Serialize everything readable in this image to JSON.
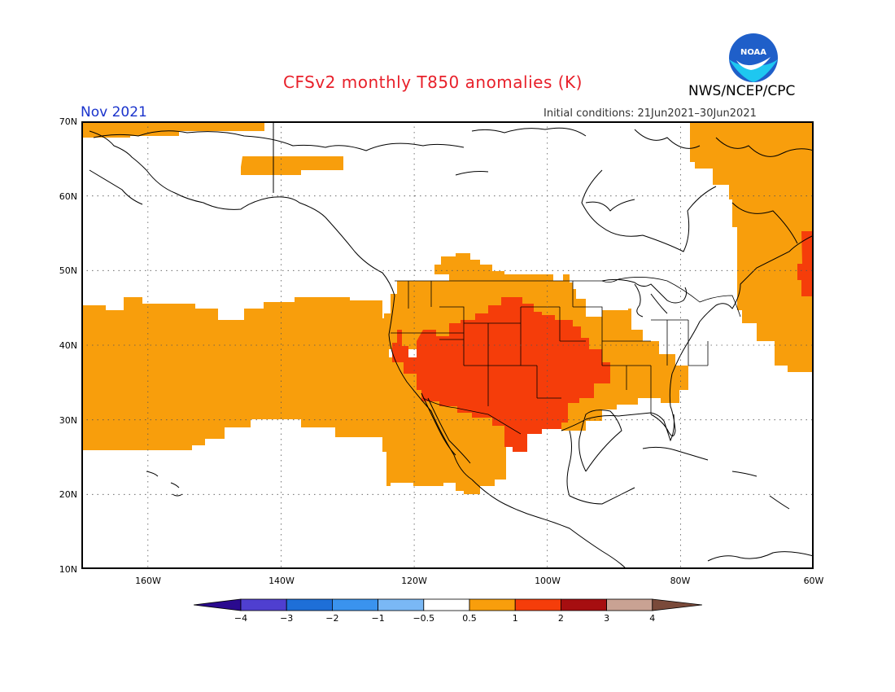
{
  "title": "CFSv2 monthly T850 anomalies (K)",
  "agency": "NWS/NCEP/CPC",
  "logo_text": "NOAA",
  "valid_month": "Nov 2021",
  "initial_conditions": "Initial conditions: 21Jun2021–30Jun2021",
  "lat_labels": [
    "70N",
    "60N",
    "50N",
    "40N",
    "30N",
    "20N",
    "10N"
  ],
  "lon_labels": [
    "160W",
    "140W",
    "120W",
    "100W",
    "80W",
    "60W"
  ],
  "colorbar": {
    "labels": [
      "−4",
      "−3",
      "−2",
      "−1",
      "−0.5",
      "0.5",
      "1",
      "2",
      "3",
      "4"
    ],
    "colors": [
      "#2a0a8f",
      "#4f3fd0",
      "#1e6fd8",
      "#3a93ee",
      "#7ab8f5",
      "#ffffff",
      "#f89e0c",
      "#f53d0a",
      "#a60e10",
      "#c9a293",
      "#7a4a3a"
    ]
  },
  "anomaly_colors": {
    "0.5-1": "#f89e0c",
    "1-2": "#f53d0a"
  }
}
